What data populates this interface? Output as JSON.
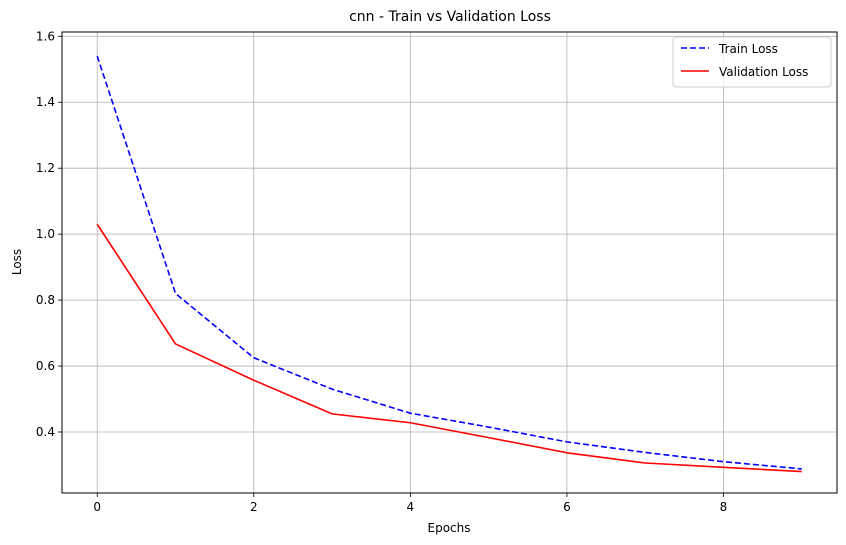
{
  "chart_data": {
    "type": "line",
    "title": "cnn - Train vs Validation Loss",
    "xlabel": "Epochs",
    "ylabel": "Loss",
    "xlim": [
      -0.45,
      9.45
    ],
    "ylim": [
      0.215,
      1.613
    ],
    "xticks": [
      0,
      2,
      4,
      6,
      8
    ],
    "yticks": [
      0.4,
      0.6,
      0.8,
      1.0,
      1.2,
      1.4,
      1.6
    ],
    "grid": true,
    "legend_position": "top-right",
    "x": [
      0,
      1,
      2,
      3,
      4,
      5,
      6,
      7,
      8,
      9
    ],
    "series": [
      {
        "name": "Train Loss",
        "color": "#0000ff",
        "dashed": true,
        "values": [
          1.54,
          0.82,
          0.625,
          0.53,
          0.457,
          0.415,
          0.37,
          0.338,
          0.31,
          0.288
        ]
      },
      {
        "name": "Validation Loss",
        "color": "#ff0000",
        "dashed": false,
        "values": [
          1.03,
          0.667,
          0.557,
          0.455,
          0.428,
          0.383,
          0.337,
          0.306,
          0.293,
          0.28
        ]
      }
    ]
  }
}
